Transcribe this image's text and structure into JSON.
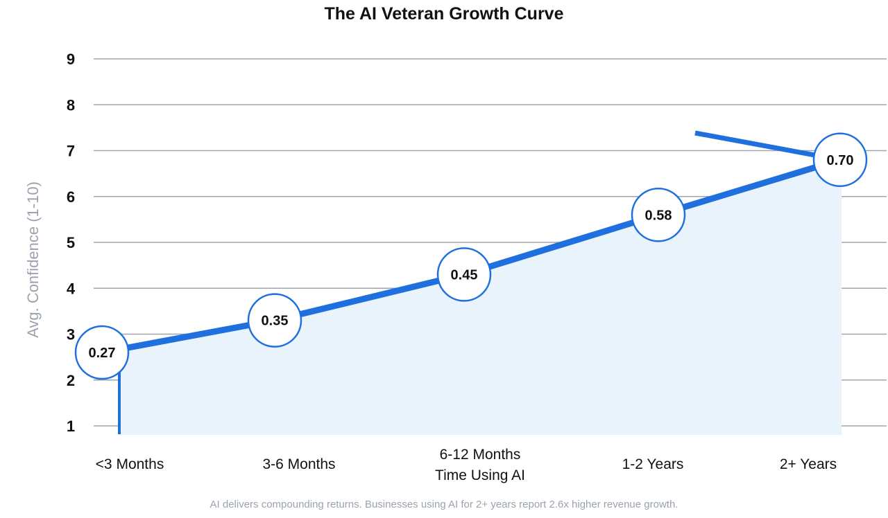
{
  "chart_data": {
    "type": "line",
    "title": "The AI Veteran Growth Curve",
    "ylabel": "Avg. Confidence (1-10)",
    "xlabel": "Time Using AI",
    "categories": [
      "<3 Months",
      "3-6 Months",
      "6-12 Months",
      "1-2 Years",
      "2+ Years"
    ],
    "yticks": [
      "1",
      "2",
      "3",
      "4",
      "5",
      "6",
      "7",
      "8",
      "9"
    ],
    "ylim": [
      0.8,
      9
    ],
    "grid": true,
    "series": [
      {
        "values": [
          2.6,
          3.3,
          4.3,
          5.6,
          6.8
        ]
      }
    ],
    "data_labels": [
      "0.27",
      "0.35",
      "0.45",
      "0.58",
      "0.70"
    ],
    "annotations": [],
    "colors": {
      "line": "#1f6fde",
      "fill": "#e8f3fc",
      "grid": "#9aa5af",
      "marker_border": "#1f6fde"
    },
    "caption": "AI delivers compounding returns. Businesses using AI for 2+ years report 2.6x higher revenue growth."
  }
}
